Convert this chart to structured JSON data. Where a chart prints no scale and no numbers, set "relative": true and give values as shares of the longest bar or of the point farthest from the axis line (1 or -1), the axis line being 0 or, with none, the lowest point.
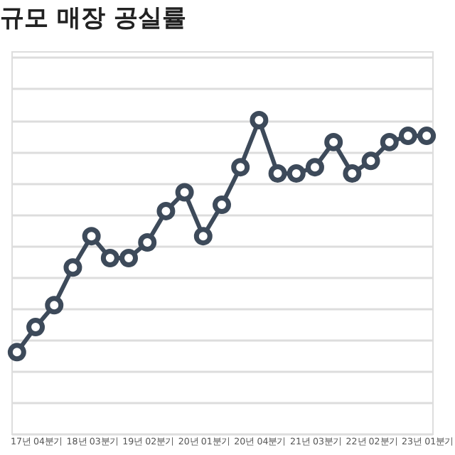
{
  "chart_data": {
    "type": "line",
    "title": "규모 매장 공실률",
    "categories": [
      null,
      "17년 04분기",
      null,
      null,
      "18년 03분기",
      null,
      null,
      "19년 02분기",
      null,
      null,
      "20년 01분기",
      null,
      null,
      "20년 04분기",
      null,
      null,
      "21년 03분기",
      null,
      null,
      "22년 02분기",
      null,
      null,
      "23년 01분기"
    ],
    "series": [
      {
        "color": "#3d4a5a",
        "values": [
          0.26,
          0.34,
          0.41,
          0.53,
          0.63,
          0.56,
          0.56,
          0.61,
          0.71,
          0.77,
          0.63,
          0.73,
          0.85,
          1,
          0.83,
          0.83,
          0.85,
          0.93,
          0.83,
          0.87,
          0.93,
          0.95,
          0.95
        ]
      }
    ],
    "relative": true,
    "grid": "y",
    "marker": "circle",
    "line_style": "solid"
  }
}
